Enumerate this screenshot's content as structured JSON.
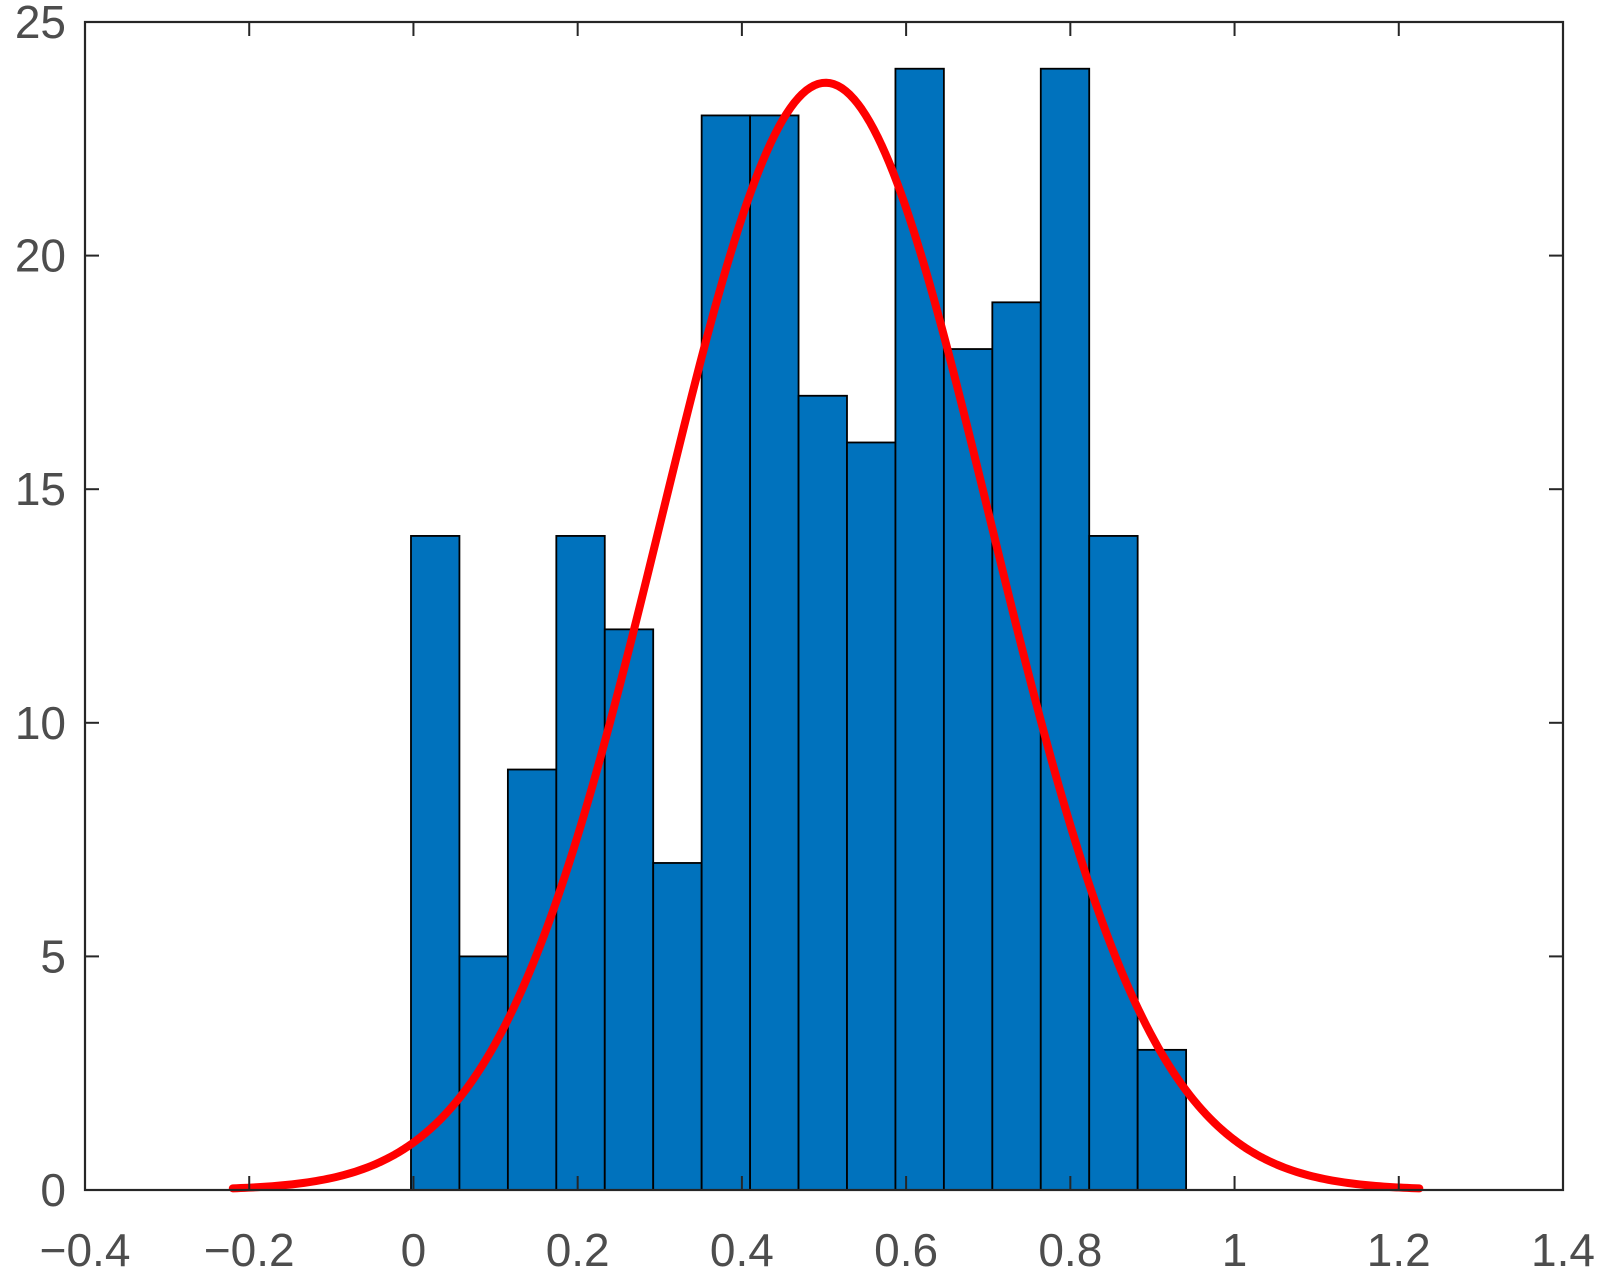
{
  "chart_data": {
    "type": "bar",
    "subtype": "histogram",
    "title": "",
    "xlabel": "",
    "ylabel": "",
    "xlim": [
      -0.4,
      1.4
    ],
    "ylim": [
      0,
      25
    ],
    "xticks": [
      -0.4,
      -0.2,
      0,
      0.2,
      0.4,
      0.6,
      0.8,
      1,
      1.2,
      1.4
    ],
    "xtick_labels": [
      "−0.4",
      "−0.2",
      "0",
      "0.2",
      "0.4",
      "0.6",
      "0.8",
      "1",
      "1.2",
      "1.4"
    ],
    "yticks": [
      0,
      5,
      10,
      15,
      20,
      25
    ],
    "ytick_labels": [
      "0",
      "5",
      "10",
      "15",
      "20",
      "25"
    ],
    "grid": false,
    "bins": {
      "edges": [
        -0.003,
        0.056,
        0.115,
        0.174,
        0.233,
        0.292,
        0.351,
        0.41,
        0.469,
        0.528,
        0.587,
        0.646,
        0.705,
        0.764,
        0.823,
        0.882,
        0.941
      ],
      "counts": [
        14,
        5,
        9,
        14,
        12,
        7,
        23,
        23,
        17,
        16,
        24,
        18,
        19,
        24,
        14,
        3
      ]
    },
    "fit_curve": {
      "type": "normal",
      "peak": 23.7,
      "mean": 0.502,
      "sigma": 0.2,
      "x_range": [
        -0.22,
        1.225
      ]
    },
    "colors": {
      "bar_fill": "#0072BD",
      "bar_edge": "#000000",
      "fit_line": "#FF0000",
      "axis": "#262626",
      "tick_text": "#4d4d4d"
    }
  }
}
